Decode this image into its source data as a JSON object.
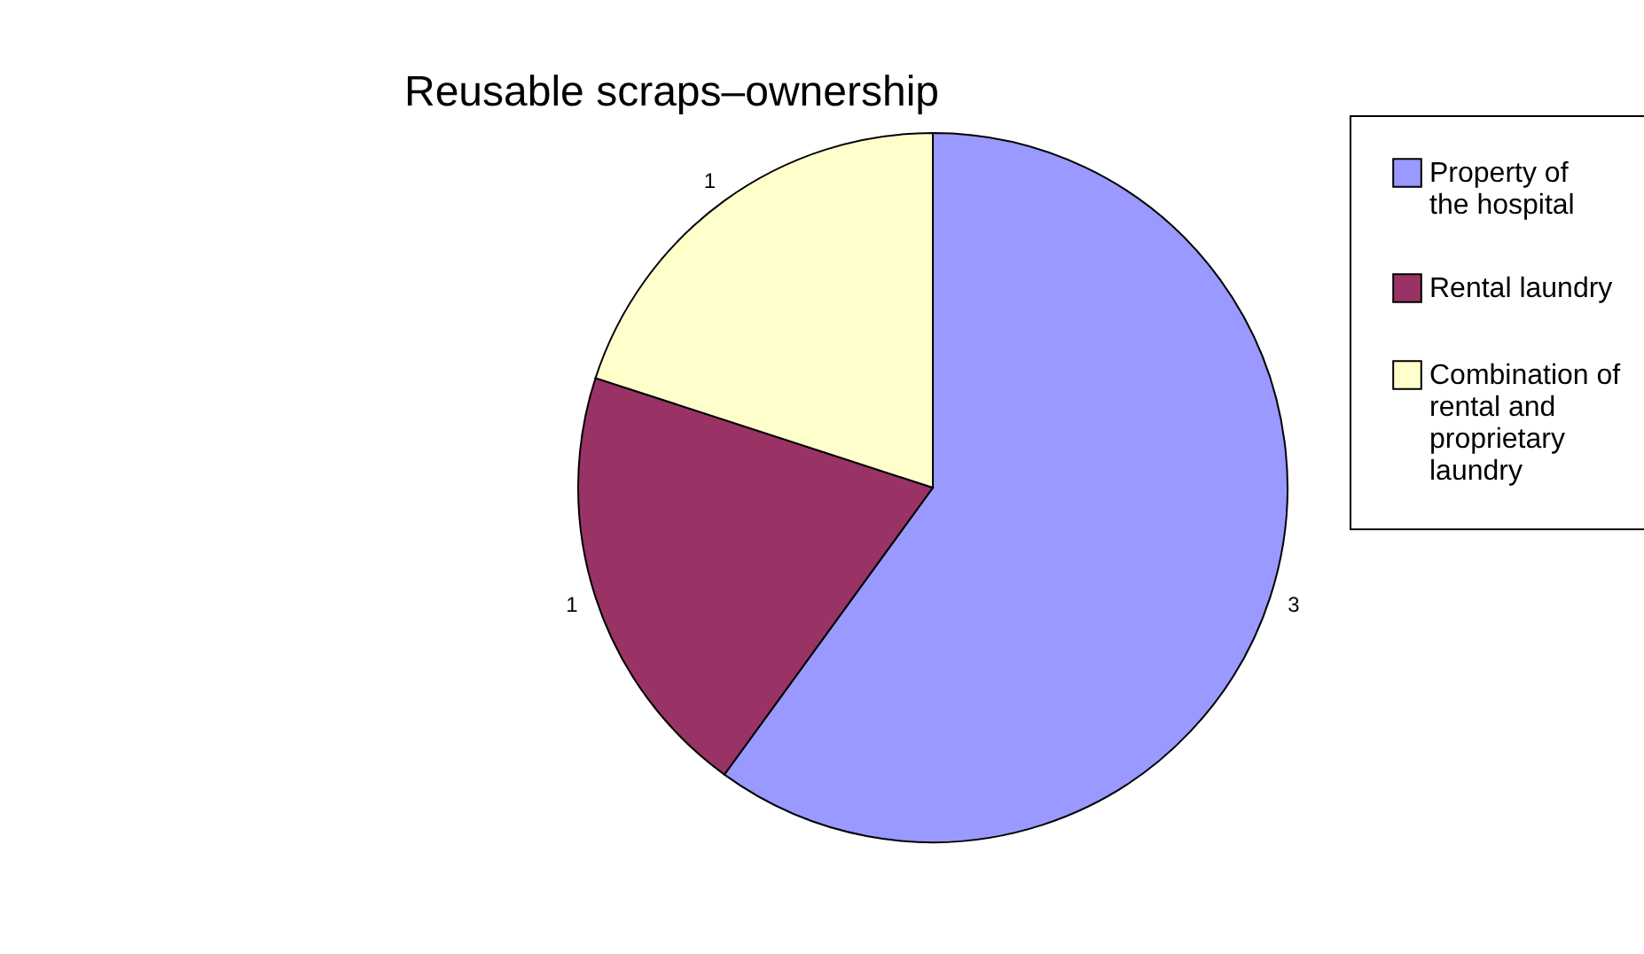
{
  "chart_data": {
    "type": "pie",
    "title": "Reusable scraps–ownership",
    "categories": [
      "Property of the hospital",
      "Rental laundry",
      "Combination of rental and proprietary laundry"
    ],
    "values": [
      3,
      1,
      1
    ],
    "colors": [
      "#9999ff",
      "#993366",
      "#ffffcc"
    ],
    "data_labels": true,
    "legend": "right"
  }
}
